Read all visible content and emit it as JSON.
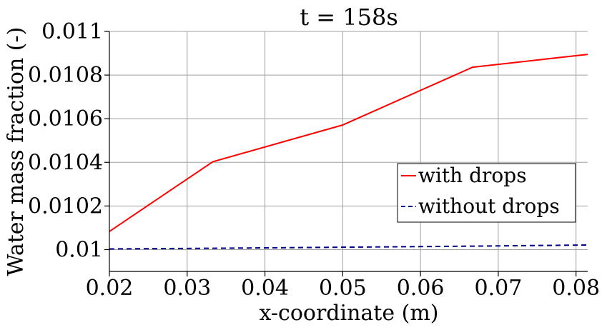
{
  "chart_data": {
    "type": "line",
    "title": "t = 158s",
    "xlabel": "x-coordinate (m)",
    "ylabel": "Water mass fraction (-)",
    "xlim": [
      0.02,
      0.0815
    ],
    "ylim": [
      0.0099,
      0.011
    ],
    "xticks": [
      0.02,
      0.03,
      0.04,
      0.05,
      0.06,
      0.07,
      0.08
    ],
    "xtick_labels": [
      "0.02",
      "0.03",
      "0.04",
      "0.05",
      "0.06",
      "0.07",
      "0.08"
    ],
    "yticks": [
      0.01,
      0.0102,
      0.0104,
      0.0106,
      0.0108,
      0.011
    ],
    "ytick_labels": [
      "0.01",
      "0.0102",
      "0.0104",
      "0.0106",
      "0.0108",
      "0.011"
    ],
    "grid": true,
    "legend_position": "right",
    "series": [
      {
        "name": "with drops",
        "color": "#ff0000",
        "dash": "solid",
        "x": [
          0.02,
          0.0333,
          0.05,
          0.0667,
          0.0815
        ],
        "y": [
          0.010083,
          0.010403,
          0.010571,
          0.010836,
          0.010895
        ]
      },
      {
        "name": "without drops",
        "color": "#00008b",
        "dash": "dashed",
        "x": [
          0.02,
          0.0333,
          0.05,
          0.0667,
          0.0815
        ],
        "y": [
          0.010003,
          0.010006,
          0.010011,
          0.010016,
          0.010021
        ]
      }
    ]
  }
}
